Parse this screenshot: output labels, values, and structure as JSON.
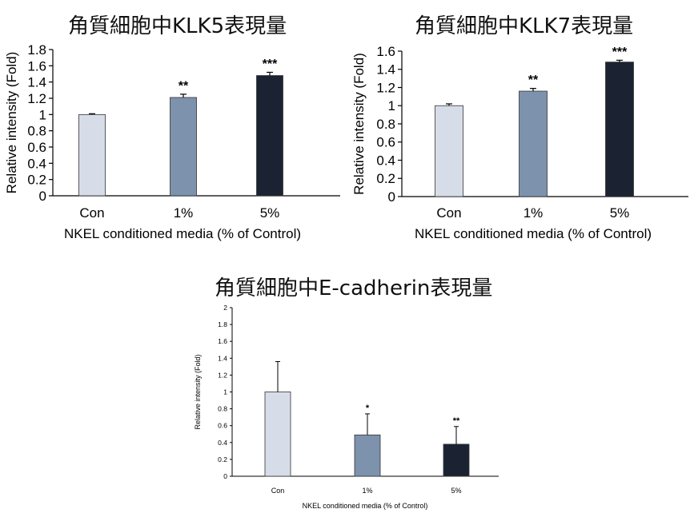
{
  "chart_data": [
    {
      "type": "bar",
      "title": "角質細胞中KLK5表現量",
      "xlabel": "NKEL conditioned media (% of Control)",
      "ylabel": "Relative intensity (Fold)",
      "categories": [
        "Con",
        "1%",
        "5%"
      ],
      "values": [
        1.0,
        1.21,
        1.48
      ],
      "errors": [
        0.01,
        0.04,
        0.04
      ],
      "significance": [
        "",
        "**",
        "***"
      ],
      "colors": [
        "#d7dde8",
        "#7d92ad",
        "#1b2332"
      ],
      "ylim": [
        0,
        1.8
      ],
      "yticks": [
        "0",
        "0.2",
        "0.4",
        "0.6",
        "0.8",
        "1",
        "1.2",
        "1.4",
        "1.6",
        "1.8"
      ],
      "grid": false
    },
    {
      "type": "bar",
      "title": "角質細胞中KLK7表現量",
      "xlabel": "NKEL conditioned media (% of Control)",
      "ylabel": "Relative intensity (Fold)",
      "categories": [
        "Con",
        "1%",
        "5%"
      ],
      "values": [
        1.0,
        1.16,
        1.48
      ],
      "errors": [
        0.02,
        0.03,
        0.02
      ],
      "significance": [
        "",
        "**",
        "***"
      ],
      "colors": [
        "#d7dde8",
        "#7d92ad",
        "#1b2332"
      ],
      "ylim": [
        0,
        1.6
      ],
      "yticks": [
        "0",
        "0.2",
        "0.4",
        "0.6",
        "0.8",
        "1",
        "1.2",
        "1.4",
        "1.6"
      ],
      "grid": false
    },
    {
      "type": "bar",
      "title": "角質細胞中E-cadherin表現量",
      "xlabel": "NKEL conditioned media (% of Control)",
      "ylabel": "Relative intensity  (Fold)",
      "categories": [
        "Con",
        "1%",
        "5%"
      ],
      "values": [
        1.0,
        0.49,
        0.38
      ],
      "errors": [
        0.36,
        0.25,
        0.21
      ],
      "significance": [
        "",
        "*",
        "**"
      ],
      "colors": [
        "#d7dde8",
        "#7d92ad",
        "#1b2332"
      ],
      "ylim": [
        0,
        2
      ],
      "yticks": [
        "0",
        "0.2",
        "0.4",
        "0.6",
        "0.8",
        "1",
        "1.2",
        "1.4",
        "1.6",
        "1.8",
        "2"
      ],
      "grid": false
    }
  ]
}
